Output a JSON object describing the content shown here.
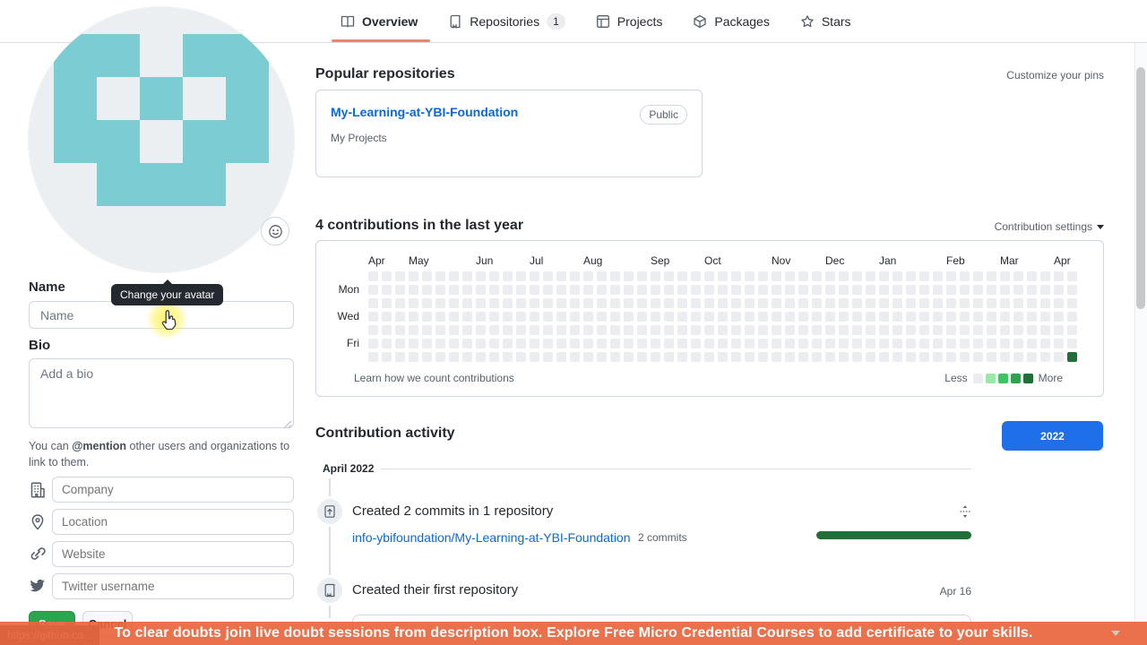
{
  "tabs": {
    "items": [
      {
        "label": "Overview",
        "active": true
      },
      {
        "label": "Repositories",
        "badge": "1"
      },
      {
        "label": "Projects"
      },
      {
        "label": "Packages"
      },
      {
        "label": "Stars"
      }
    ]
  },
  "profile": {
    "avatar": {
      "color": "#7bcdd3",
      "background": "#eceff1",
      "pattern": [
        [
          1,
          1,
          0,
          1,
          1
        ],
        [
          1,
          0,
          1,
          0,
          1
        ],
        [
          1,
          1,
          0,
          1,
          1
        ],
        [
          0,
          1,
          1,
          1,
          0
        ],
        [
          0,
          0,
          0,
          0,
          0
        ]
      ]
    },
    "tooltip": "Change your avatar",
    "name_label": "Name",
    "name_placeholder": "Name",
    "bio_label": "Bio",
    "bio_placeholder": "Add a bio",
    "mention_hint_pre": "You can ",
    "mention_hint_bold": "@mention",
    "mention_hint_post": " other users and organizations to link to them.",
    "company_placeholder": "Company",
    "location_placeholder": "Location",
    "website_placeholder": "Website",
    "twitter_placeholder": "Twitter username",
    "save_label": "Save",
    "cancel_label": "Cancel"
  },
  "popular": {
    "title": "Popular repositories",
    "customize_link": "Customize your pins",
    "repo": {
      "name": "My-Learning-at-YBI-Foundation",
      "visibility": "Public",
      "description": "My Projects"
    }
  },
  "contributions": {
    "title": "4 contributions in the last year",
    "settings_label": "Contribution settings",
    "learn_link": "Learn how we count contributions",
    "legend_less": "Less",
    "legend_more": "More",
    "legend_colors": [
      "#ebedf0",
      "#9be9a8",
      "#40c463",
      "#30a14e",
      "#216e39"
    ],
    "empty_color": "#ebedf0",
    "weeks": 53,
    "days": 7,
    "months": [
      {
        "label": "Apr",
        "col": 1
      },
      {
        "label": "May",
        "col": 4
      },
      {
        "label": "Jun",
        "col": 9
      },
      {
        "label": "Jul",
        "col": 13
      },
      {
        "label": "Aug",
        "col": 17
      },
      {
        "label": "Sep",
        "col": 22
      },
      {
        "label": "Oct",
        "col": 26
      },
      {
        "label": "Nov",
        "col": 31
      },
      {
        "label": "Dec",
        "col": 35
      },
      {
        "label": "Jan",
        "col": 39
      },
      {
        "label": "Feb",
        "col": 44
      },
      {
        "label": "Mar",
        "col": 48
      },
      {
        "label": "Apr",
        "col": 52
      }
    ],
    "day_labels": [
      {
        "label": "Mon",
        "row": 2
      },
      {
        "label": "Wed",
        "row": 4
      },
      {
        "label": "Fri",
        "row": 6
      }
    ],
    "filled_cells": [
      {
        "col": 53,
        "row": 7,
        "color": "#216e39"
      }
    ]
  },
  "activity": {
    "title": "Contribution activity",
    "year_button": "2022",
    "month_header": "April 2022",
    "items": [
      {
        "title": "Created 2 commits in 1 repository",
        "link": "info-ybifoundation/My-Learning-at-YBI-Foundation",
        "link_meta": "2 commits"
      },
      {
        "title": "Created their first repository",
        "date": "Apr 16"
      }
    ]
  },
  "status_bar": {
    "url": "https://github.co..."
  },
  "banner": {
    "text": "To clear doubts join live doubt sessions from description box. Explore Free Micro Credential Courses to add certificate to your skills."
  },
  "colors": {
    "accent_link": "#0969da",
    "tab_underline": "#f0846d",
    "year_button": "#1f6feb",
    "commit_bar": "#216e39",
    "save_button": "#2da44e",
    "banner": "#e8663e",
    "avatar_teal": "#7bcdd3"
  }
}
